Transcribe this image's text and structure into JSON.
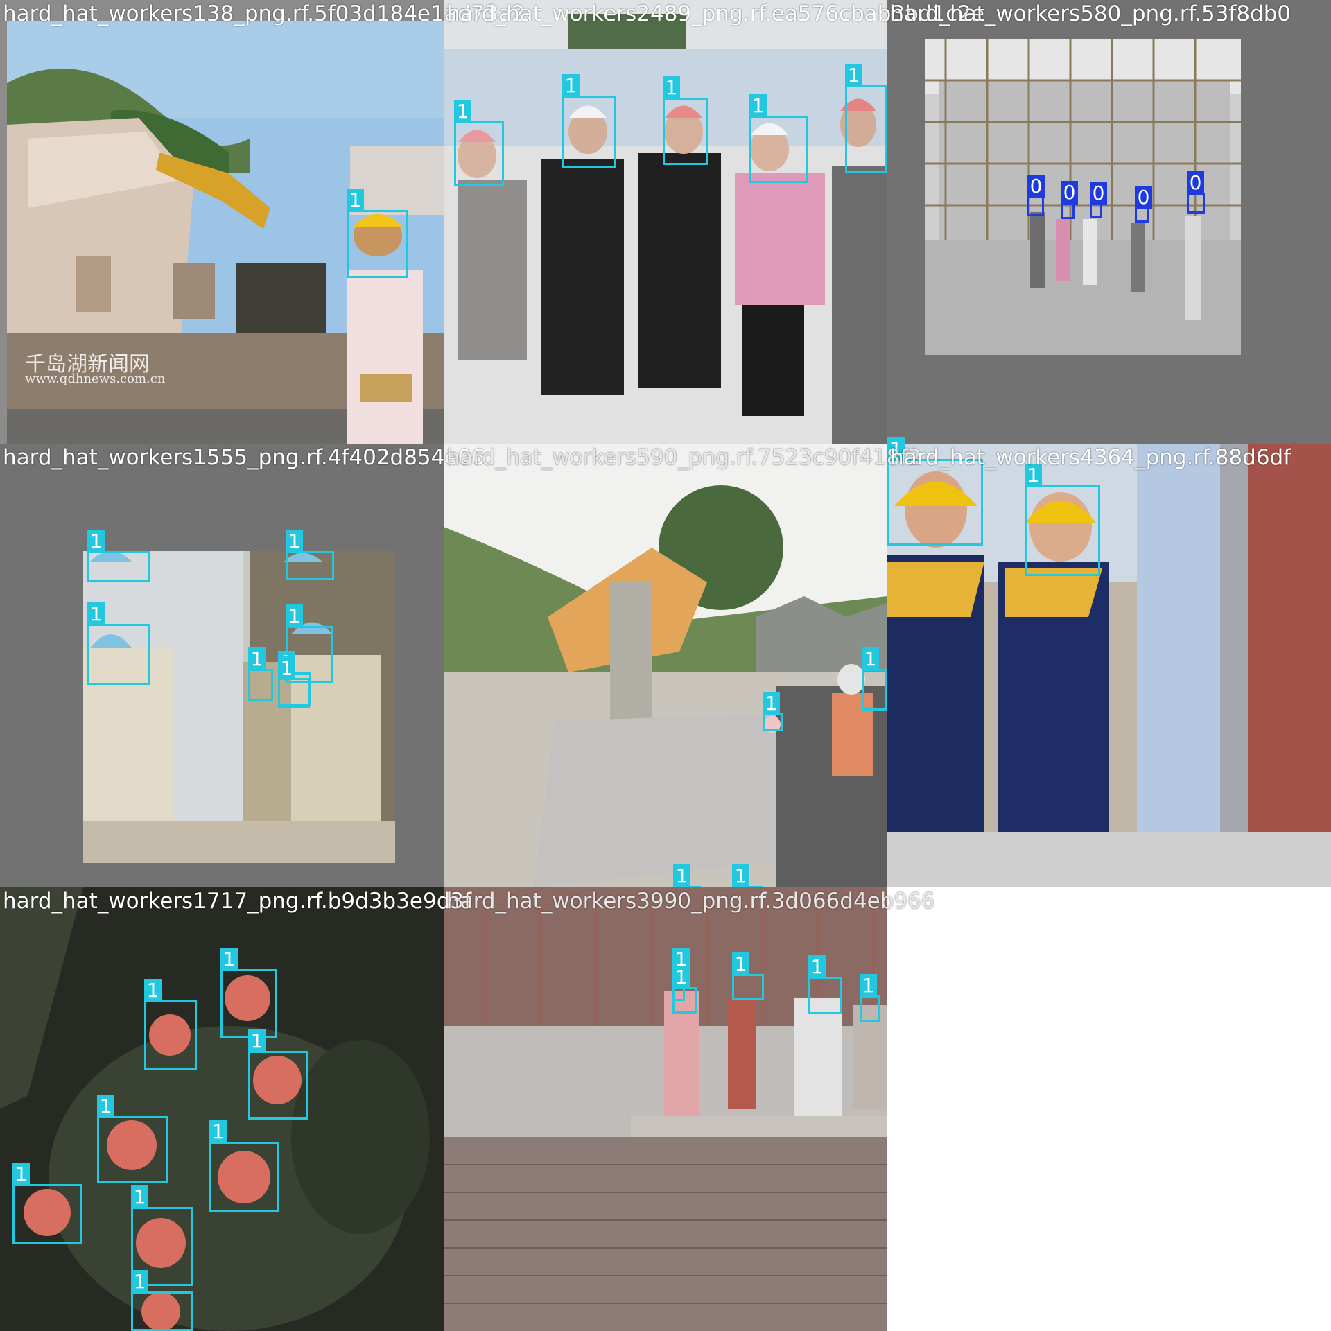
{
  "colors": {
    "class_1": "#22c8e0",
    "class_0": "#1f3be0",
    "letterbox_gray": "#727272"
  },
  "tiles": [
    {
      "title": "hard_hat_workers138_png.rf.5f03d184e1ad73a2",
      "watermark_lines": [
        "千岛湖新闻网",
        "www.qdhnews.com.cn"
      ],
      "labels": [
        "1"
      ]
    },
    {
      "title": "hard_hat_workers2489_png.rf.ea576cbab3bd1c2e",
      "labels": [
        "1",
        "1",
        "1",
        "1",
        "1"
      ]
    },
    {
      "title": "hard_hat_workers580_png.rf.53f8db0",
      "labels": [
        "0",
        "0",
        "0",
        "0",
        "0"
      ]
    },
    {
      "title": "hard_hat_workers1555_png.rf.4f402d854e06",
      "labels": [
        "1",
        "1",
        "1",
        "1",
        "1",
        "1",
        "1"
      ]
    },
    {
      "title": "hard_hat_workers590_png.rf.7523c90f418f2",
      "labels": [
        "1",
        "1",
        "1",
        "1"
      ]
    },
    {
      "title": "hard_hat_workers4364_png.rf.88d6df",
      "labels": [
        "1",
        "1"
      ]
    },
    {
      "title": "hard_hat_workers1717_png.rf.b9d3b3e9d3f",
      "labels": [
        "1",
        "1",
        "1",
        "1",
        "1",
        "1",
        "1",
        "1"
      ]
    },
    {
      "title": "hard_hat_workers3990_png.rf.3d066d4eb966",
      "labels": [
        "1",
        "1",
        "1",
        "1",
        "1"
      ]
    }
  ]
}
